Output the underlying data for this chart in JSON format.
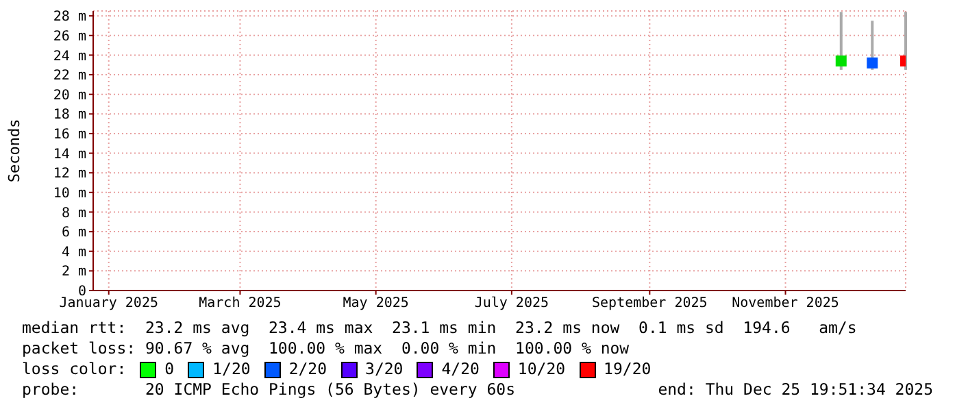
{
  "chart_data": {
    "type": "scatter",
    "ylabel": "Seconds",
    "x": [
      "2025-11-26",
      "2025-12-10",
      "2025-12-25"
    ],
    "values": [
      23.4,
      23.2,
      23.4
    ],
    "errors": [
      [
        22.5,
        28.4
      ],
      [
        22.5,
        27.5
      ],
      [
        22.5,
        28.4
      ]
    ],
    "colors": [
      "#00e000",
      "#0055ff",
      "#ff0000"
    ],
    "marker": "square",
    "grid": true,
    "xlim": [
      "2024-12-25",
      "2025-12-25"
    ],
    "xticks": [
      {
        "value": "2025-01-01",
        "label": "January 2025"
      },
      {
        "value": "2025-03-01",
        "label": "March 2025"
      },
      {
        "value": "2025-05-01",
        "label": "May 2025"
      },
      {
        "value": "2025-07-01",
        "label": "July 2025"
      },
      {
        "value": "2025-09-01",
        "label": "September 2025"
      },
      {
        "value": "2025-11-01",
        "label": "November 2025"
      }
    ],
    "ylim": [
      0,
      28.5
    ],
    "yticks": [
      0,
      {
        "value": 2,
        "label": "2 m"
      },
      {
        "value": 4,
        "label": "4 m"
      },
      {
        "value": 6,
        "label": "6 m"
      },
      {
        "value": 8,
        "label": "8 m"
      },
      {
        "value": 10,
        "label": "10 m"
      },
      {
        "value": 12,
        "label": "12 m"
      },
      {
        "value": 14,
        "label": "14 m"
      },
      {
        "value": 16,
        "label": "16 m"
      },
      {
        "value": 18,
        "label": "18 m"
      },
      {
        "value": 20,
        "label": "20 m"
      },
      {
        "value": 22,
        "label": "22 m"
      },
      {
        "value": 24,
        "label": "24 m"
      },
      {
        "value": 26,
        "label": "26 m"
      },
      {
        "value": 28,
        "label": "28 m"
      }
    ],
    "annotations": [
      "median rtt:  23.2 ms avg  23.4 ms max  23.1 ms min  23.2 ms now  0.1 ms sd  194.6   am/s",
      "packet loss: 90.67 % avg  100.00 % max  0.00 % min  100.00 % now",
      "loss color:",
      "0",
      "1/20",
      "2/20",
      "3/20",
      "4/20",
      "10/20",
      "19/20",
      "probe:       20 ICMP Echo Pings (56 Bytes) every 60s",
      "end: Thu Dec 25 19:51:34 2025"
    ]
  }
}
